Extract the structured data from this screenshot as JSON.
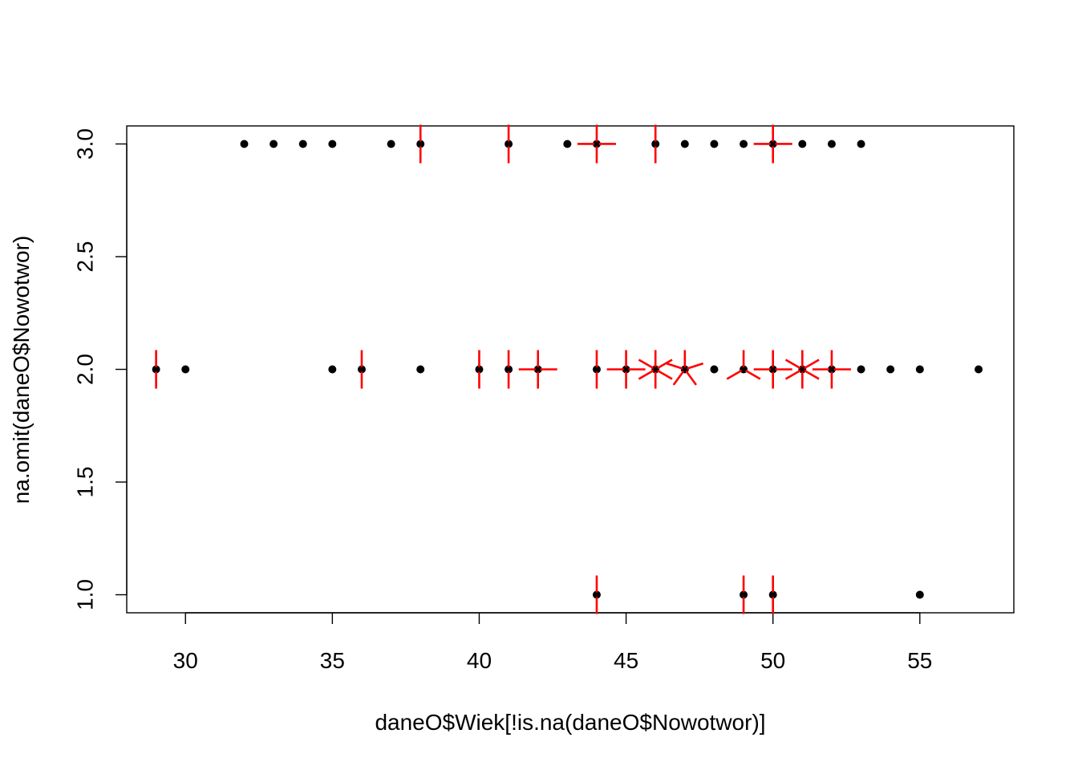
{
  "chart_data": {
    "type": "scatter",
    "title": "",
    "xlabel": "daneO$Wiek[!is.na(daneO$Nowotwor)]",
    "ylabel": "na.omit(daneO$Nowotwor)",
    "xlim": [
      28,
      58.2
    ],
    "ylim": [
      0.92,
      3.08
    ],
    "x_ticks": [
      30,
      35,
      40,
      45,
      50,
      55
    ],
    "y_ticks": [
      1.0,
      1.5,
      2.0,
      2.5,
      3.0
    ],
    "x_tick_labels": [
      "30",
      "35",
      "40",
      "45",
      "50",
      "55"
    ],
    "y_tick_labels": [
      "1.0",
      "1.5",
      "2.0",
      "2.5",
      "3.0"
    ],
    "grid": false,
    "points": [
      {
        "x": 32,
        "y": 3
      },
      {
        "x": 33,
        "y": 3
      },
      {
        "x": 34,
        "y": 3
      },
      {
        "x": 35,
        "y": 3
      },
      {
        "x": 37,
        "y": 3
      },
      {
        "x": 38,
        "y": 3
      },
      {
        "x": 41,
        "y": 3
      },
      {
        "x": 43,
        "y": 3
      },
      {
        "x": 44,
        "y": 3
      },
      {
        "x": 46,
        "y": 3
      },
      {
        "x": 47,
        "y": 3
      },
      {
        "x": 48,
        "y": 3
      },
      {
        "x": 49,
        "y": 3
      },
      {
        "x": 50,
        "y": 3
      },
      {
        "x": 51,
        "y": 3
      },
      {
        "x": 52,
        "y": 3
      },
      {
        "x": 53,
        "y": 3
      },
      {
        "x": 29,
        "y": 2
      },
      {
        "x": 30,
        "y": 2
      },
      {
        "x": 35,
        "y": 2
      },
      {
        "x": 36,
        "y": 2
      },
      {
        "x": 38,
        "y": 2
      },
      {
        "x": 40,
        "y": 2
      },
      {
        "x": 41,
        "y": 2
      },
      {
        "x": 42,
        "y": 2
      },
      {
        "x": 44,
        "y": 2
      },
      {
        "x": 45,
        "y": 2
      },
      {
        "x": 46,
        "y": 2
      },
      {
        "x": 47,
        "y": 2
      },
      {
        "x": 48,
        "y": 2
      },
      {
        "x": 49,
        "y": 2
      },
      {
        "x": 50,
        "y": 2
      },
      {
        "x": 51,
        "y": 2
      },
      {
        "x": 52,
        "y": 2
      },
      {
        "x": 53,
        "y": 2
      },
      {
        "x": 54,
        "y": 2
      },
      {
        "x": 55,
        "y": 2
      },
      {
        "x": 57,
        "y": 2
      },
      {
        "x": 44,
        "y": 1
      },
      {
        "x": 49,
        "y": 1
      },
      {
        "x": 50,
        "y": 1
      },
      {
        "x": 55,
        "y": 1
      }
    ],
    "sunflowers": [
      {
        "x": 38,
        "y": 3,
        "count": 2
      },
      {
        "x": 41,
        "y": 3,
        "count": 2
      },
      {
        "x": 44,
        "y": 3,
        "count": 4
      },
      {
        "x": 46,
        "y": 3,
        "count": 2
      },
      {
        "x": 50,
        "y": 3,
        "count": 4
      },
      {
        "x": 29,
        "y": 2,
        "count": 2
      },
      {
        "x": 36,
        "y": 2,
        "count": 2
      },
      {
        "x": 40,
        "y": 2,
        "count": 2
      },
      {
        "x": 41,
        "y": 2,
        "count": 2
      },
      {
        "x": 42,
        "y": 2,
        "count": 4
      },
      {
        "x": 44,
        "y": 2,
        "count": 2
      },
      {
        "x": 45,
        "y": 2,
        "count": 4
      },
      {
        "x": 46,
        "y": 2,
        "count": 6
      },
      {
        "x": 47,
        "y": 2,
        "count": 5
      },
      {
        "x": 49,
        "y": 2,
        "count": 3
      },
      {
        "x": 50,
        "y": 2,
        "count": 4
      },
      {
        "x": 51,
        "y": 2,
        "count": 6
      },
      {
        "x": 52,
        "y": 2,
        "count": 4
      },
      {
        "x": 44,
        "y": 1,
        "count": 2
      },
      {
        "x": 49,
        "y": 1,
        "count": 2
      },
      {
        "x": 50,
        "y": 1,
        "count": 2
      }
    ],
    "colors": {
      "points": "#000000",
      "sunflower_petals": "#ff0000",
      "axes": "#000000"
    }
  }
}
